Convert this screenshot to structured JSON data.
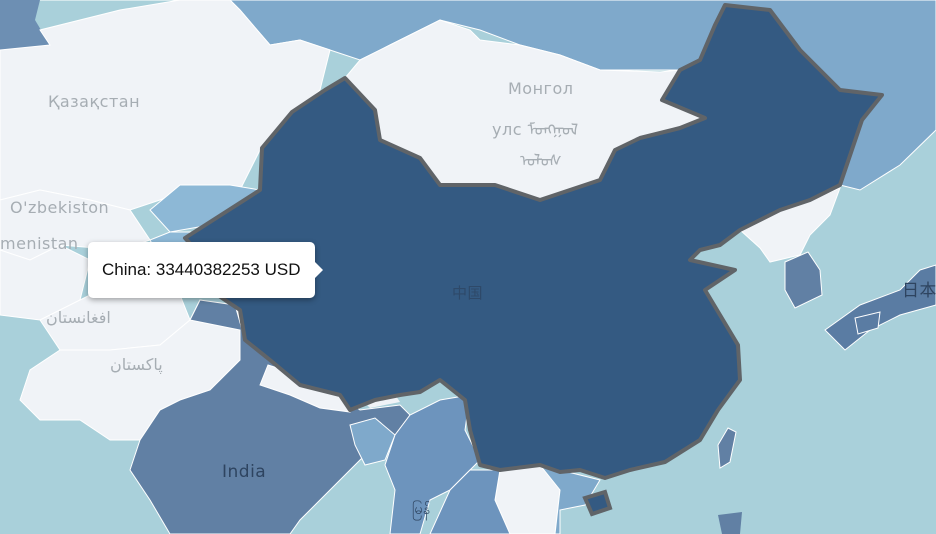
{
  "tooltip": {
    "country": "China",
    "value": "33440382253",
    "unit": "USD"
  },
  "labels": {
    "kazakhstan": "Қазақстан",
    "mongolia_1": "Монгол",
    "mongolia_2": "улс ᠮᠣᠩᠭᠣᠯ",
    "mongolia_3": "ᠤᠯᠤᠰ",
    "uzbekistan": "O'zbekiston",
    "turkmenistan": "menistan",
    "afghanistan": "افغانستان",
    "pakistan": "پاکستان",
    "india": "India",
    "china": "中国",
    "japan": "日本",
    "myanmar": "မြန်"
  },
  "colors": {
    "ocean": "#a9d0da",
    "highlight": "#345a82",
    "land_light": "#f0f3f7",
    "land_mid": "#6d8fb3",
    "land_blue": "#7fa9cb",
    "border_highlight": "#606468"
  }
}
